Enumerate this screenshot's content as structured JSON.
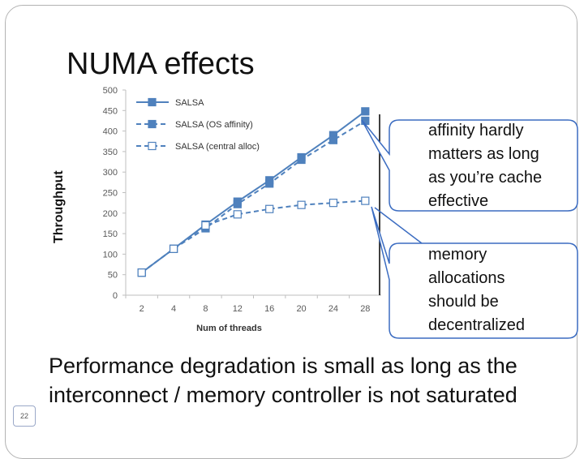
{
  "slide": {
    "title": "NUMA effects",
    "page_number": "22",
    "bullet_marker": "",
    "bullet_text": "Performance degradation is small as long as the interconnect / memory controller is not saturated"
  },
  "callouts": {
    "affinity": [
      "affinity hardly",
      "matters as long",
      "as you’re cache",
      "effective"
    ],
    "memory": [
      "memory",
      "allocations",
      "should be",
      "decentralized"
    ],
    "colors": {
      "border": "#3b6cc1",
      "fill": "#ffffff"
    }
  },
  "chart_data": {
    "type": "line",
    "title": "",
    "xlabel": "Num of threads",
    "ylabel": "Throughput",
    "categories": [
      "2",
      "4",
      "8",
      "12",
      "16",
      "20",
      "24",
      "28"
    ],
    "ylim": [
      0,
      500
    ],
    "yticks": [
      0,
      50,
      100,
      150,
      200,
      250,
      300,
      350,
      400,
      450,
      500
    ],
    "grid": false,
    "legend_position": "top-left",
    "series": [
      {
        "name": "SALSA",
        "values": [
          55,
          113,
          172,
          228,
          280,
          336,
          390,
          448
        ],
        "style": "solid",
        "marker": "filled",
        "color": "#4f81bd"
      },
      {
        "name": "SALSA (OS affinity)",
        "values": [
          55,
          113,
          163,
          222,
          272,
          330,
          378,
          425
        ],
        "style": "dashed",
        "marker": "filled",
        "color": "#4f81bd"
      },
      {
        "name": "SALSA (central alloc)",
        "values": [
          55,
          113,
          170,
          197,
          210,
          220,
          225,
          230
        ],
        "style": "dashed",
        "marker": "hollow",
        "color": "#4f81bd"
      }
    ]
  }
}
